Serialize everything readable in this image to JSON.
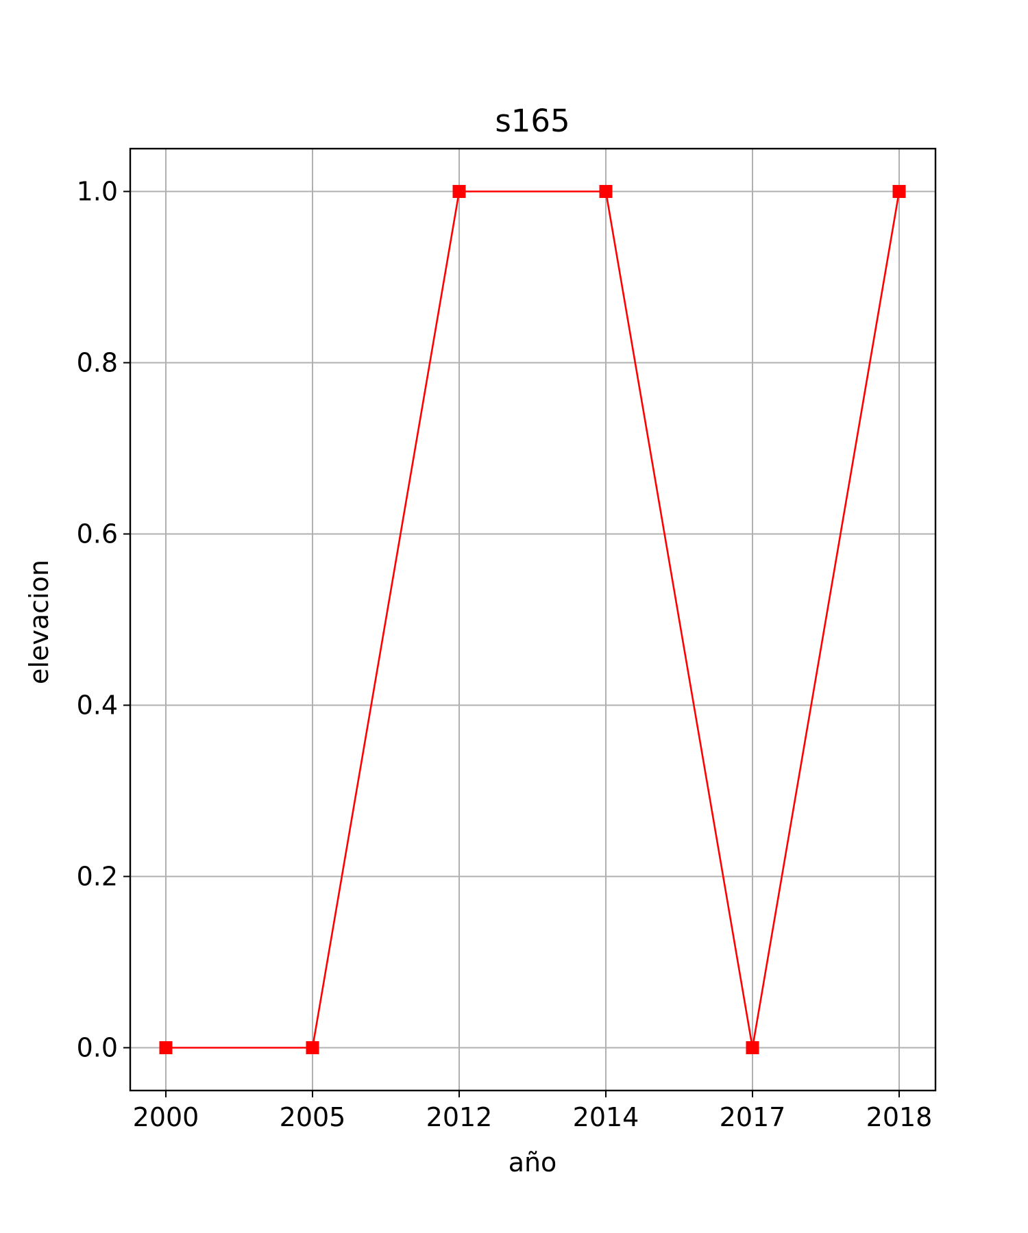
{
  "chart_data": {
    "type": "line",
    "title": "s165",
    "xlabel": "año",
    "ylabel": "elevacion",
    "categories": [
      "2000",
      "2005",
      "2012",
      "2014",
      "2017",
      "2018"
    ],
    "series": [
      {
        "values": [
          0,
          0,
          1,
          1,
          0,
          1
        ],
        "color": "#ff0000",
        "marker": "square"
      }
    ],
    "ylim": [
      -0.05,
      1.05
    ],
    "yticks": [
      0.0,
      0.2,
      0.4,
      0.6,
      0.8,
      1.0
    ],
    "ytick_labels": [
      "0.0",
      "0.2",
      "0.4",
      "0.6",
      "0.8",
      "1.0"
    ],
    "grid": true,
    "grid_color": "#b0b0b0",
    "legend": "none"
  }
}
